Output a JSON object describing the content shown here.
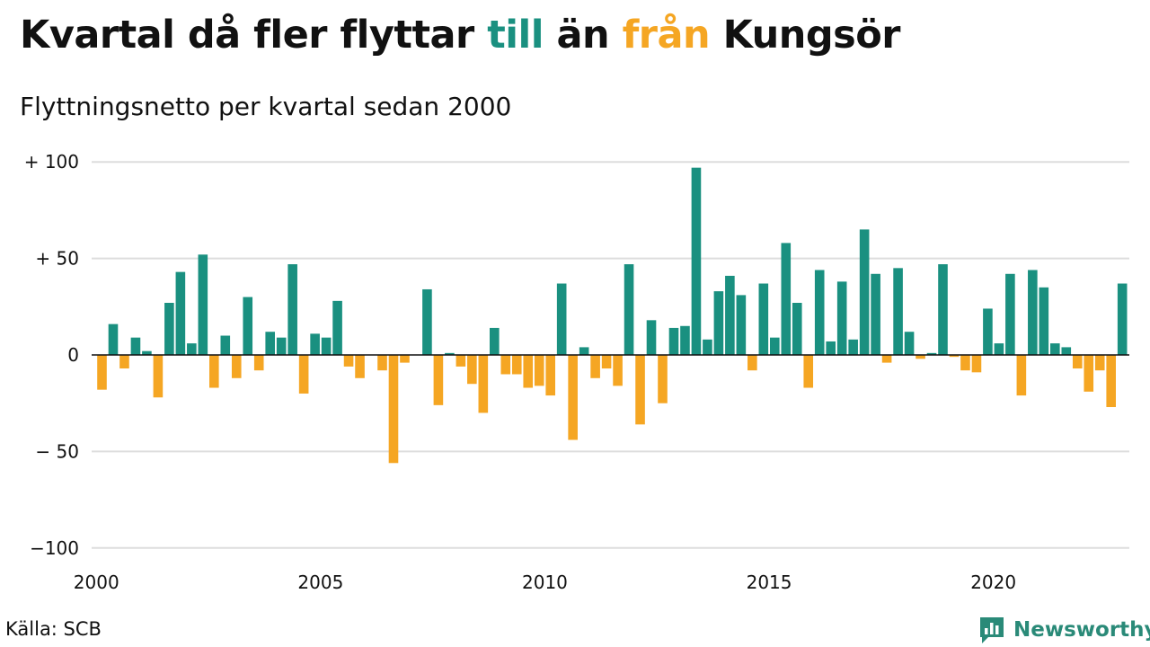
{
  "title": {
    "part1": "Kvartal då fler flyttar ",
    "part2": "till",
    "part3": " än ",
    "part4": "från",
    "part5": " Kungsör"
  },
  "subtitle": "Flyttningsnetto per kvartal sedan 2000",
  "source": "Källa: SCB",
  "brand": "Newsworthy",
  "colors": {
    "positive": "#1a9080",
    "negative": "#f5a623",
    "grid": "#dddddd",
    "brand": "#2a8a78"
  },
  "chart_data": {
    "type": "bar",
    "x_start": "2000 Q1",
    "x_ticks": [
      "2000",
      "2005",
      "2010",
      "2015",
      "2020"
    ],
    "y_ticks": [
      {
        "value": 100,
        "label": "+ 100"
      },
      {
        "value": 50,
        "label": "+  50"
      },
      {
        "value": 0,
        "label": "0"
      },
      {
        "value": -50,
        "label": "− 50"
      },
      {
        "value": -100,
        "label": "−100"
      }
    ],
    "ylim": [
      -100,
      100
    ],
    "grid": true,
    "values": [
      -18,
      16,
      -7,
      9,
      2,
      -22,
      27,
      43,
      6,
      52,
      -17,
      10,
      -12,
      30,
      -8,
      12,
      9,
      47,
      -20,
      11,
      9,
      28,
      -6,
      -12,
      0,
      -8,
      -56,
      -4,
      0,
      34,
      -26,
      1,
      -6,
      -15,
      -30,
      14,
      -10,
      -10,
      -17,
      -16,
      -21,
      37,
      -44,
      4,
      -12,
      -7,
      -16,
      47,
      -36,
      18,
      -25,
      14,
      15,
      97,
      8,
      33,
      41,
      31,
      -8,
      37,
      9,
      58,
      27,
      -17,
      44,
      7,
      38,
      8,
      65,
      42,
      -4,
      45,
      12,
      -2,
      1,
      47,
      -1,
      -8,
      -9,
      24,
      6,
      42,
      -21,
      44,
      35,
      6,
      4,
      -7,
      -19,
      -8,
      -27,
      37
    ]
  }
}
